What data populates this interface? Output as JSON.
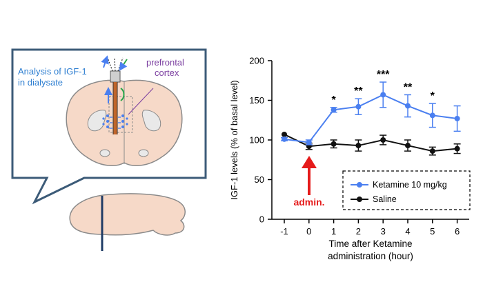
{
  "colors": {
    "ketamine": "#4a7ff0",
    "saline": "#111111",
    "admin_arrow": "#e51b1b",
    "brain_fill": "#f6d9c8",
    "brain_stroke": "#8a8a8a",
    "cortex_label": "#7b3fa0",
    "analysis_label": "#2f7fd1",
    "probe": "#c0652a"
  },
  "diagram": {
    "analysis_label_line1": "Analysis of IGF-1",
    "analysis_label_line2": "in dialysate",
    "cortex_label_line1": "prefrontal",
    "cortex_label_line2": "cortex",
    "icons": [
      "brain-coronal-section",
      "brain-sagittal-section",
      "microdialysis-probe",
      "arrow-up",
      "arrow-down"
    ]
  },
  "chart_data": {
    "type": "line",
    "title": "",
    "xlabel_line1": "Time  after Ketamine",
    "xlabel_line2": "administration  (hour)",
    "ylabel": "IGF-1 levels  (% of basal level)",
    "x": [
      -1,
      0,
      1,
      2,
      3,
      4,
      5,
      6
    ],
    "x_tick_labels": [
      "-1",
      "0",
      "1",
      "2",
      "3",
      "4",
      "5",
      "6"
    ],
    "ylim": [
      0,
      200
    ],
    "y_ticks": [
      0,
      50,
      100,
      150,
      200
    ],
    "y_tick_labels": [
      "0",
      "50",
      "100",
      "150",
      "200"
    ],
    "grid": false,
    "legend_position": "bottom-right",
    "series": [
      {
        "name": "Ketamine  10 mg/kg",
        "values": [
          101,
          97,
          138,
          142,
          157,
          143,
          131,
          127
        ],
        "errors": [
          2,
          3,
          3,
          10,
          16,
          14,
          15,
          16
        ],
        "significance": [
          "",
          "",
          "*",
          "**",
          "***",
          "**",
          "*",
          ""
        ]
      },
      {
        "name": "Saline",
        "values": [
          107,
          92,
          95,
          93,
          100,
          93,
          86,
          89
        ],
        "errors": [
          0,
          4,
          5,
          7,
          6,
          7,
          5,
          6
        ],
        "significance": [
          "",
          "",
          "",
          "",
          "",
          "",
          "",
          ""
        ]
      }
    ],
    "annotation": "admin."
  }
}
